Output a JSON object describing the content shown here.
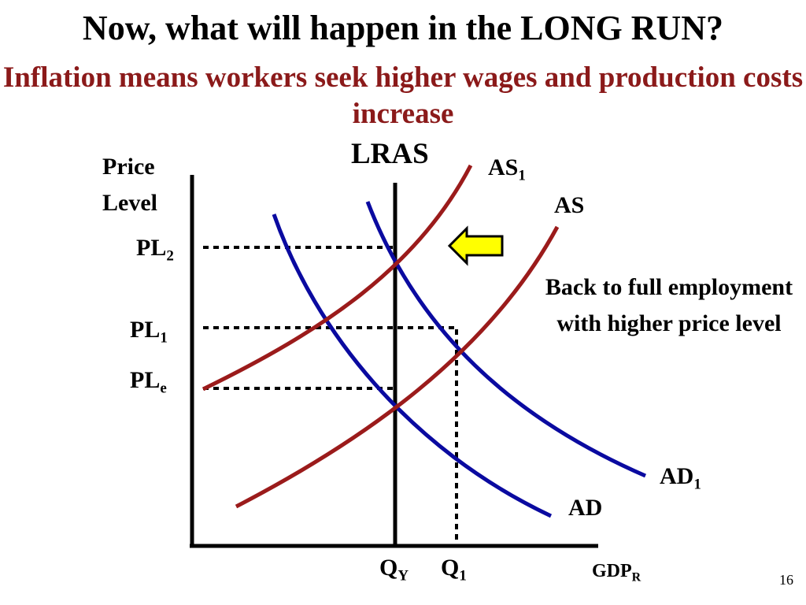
{
  "title": "Now, what will happen in the LONG RUN?",
  "subtitle": "Inflation means workers seek higher wages and production costs increase",
  "axes": {
    "y_label_line1": "Price",
    "y_label_line2": "Level",
    "x_label_main": "GDP",
    "x_label_sub": "R"
  },
  "curves": {
    "lras": "LRAS",
    "as1_main": "AS",
    "as1_sub": "1",
    "as": "AS",
    "ad1_main": "AD",
    "ad1_sub": "1",
    "ad": "AD"
  },
  "price_levels": {
    "pl2_main": "PL",
    "pl2_sub": "2",
    "pl1_main": "PL",
    "pl1_sub": "1",
    "ple_main": "PL",
    "ple_sub": "e"
  },
  "quantities": {
    "qy_main": "Q",
    "qy_sub": "Y",
    "q1_main": "Q",
    "q1_sub": "1"
  },
  "note": "Back to full employment with higher price level",
  "slide_number": "16",
  "colors": {
    "supply": "#9b1b1b",
    "demand": "#0a0aa0",
    "subtitle": "#8b1a1a",
    "arrow_fill": "#ffff00"
  },
  "icons": {
    "shift_arrow": "left-arrow-icon"
  }
}
